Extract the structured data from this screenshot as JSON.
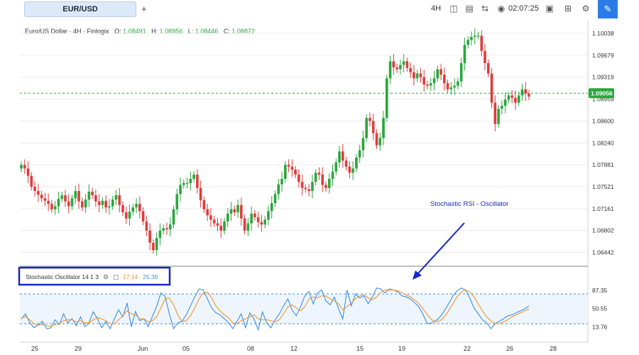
{
  "toolbar": {
    "symbol": "EUR/USD",
    "add_label": "+",
    "timeframe": "4H",
    "time": "02:07:25"
  },
  "legend": {
    "title": "Euro/US Dollar · 4H · Finlogix",
    "o_label": "O:",
    "o": "1.08491",
    "h_label": "H:",
    "h": "1.08956",
    "l_label": "L:",
    "l": "1.08446",
    "c_label": "C:",
    "c": "1.08872"
  },
  "osc": {
    "label": "Stochastic Oscillator 14 1 3",
    "k": "17.14",
    "d": "25.39"
  },
  "annotation": "Stochastic RSI - Oscillator",
  "colors": {
    "up": "#2aa63c",
    "down": "#e03b3b",
    "k_line": "#3d8fe0",
    "d_line": "#f0952d",
    "annot": "#1727c4",
    "price_line": "#2aa63c"
  },
  "chart_data": [
    {
      "type": "candlestick",
      "title": "Euro/US Dollar · 4H · Finlogix",
      "x_ticks": [
        "25",
        "29",
        "Jun",
        "05",
        "08",
        "12",
        "15",
        "19",
        "22",
        "26",
        "28"
      ],
      "y_ticks": [
        "1.10038",
        "1.09679",
        "1.09319",
        "1.08959",
        "1.08600",
        "1.08240",
        "1.07881",
        "1.07521",
        "1.07161",
        "1.06802",
        "1.06442"
      ],
      "current_price": "1.09056",
      "ylim": [
        1.0625,
        1.1026
      ],
      "close_series": [
        1.0788,
        1.0782,
        1.077,
        1.0752,
        1.0745,
        1.0739,
        1.0733,
        1.0729,
        1.0724,
        1.0715,
        1.072,
        1.0732,
        1.0738,
        1.0728,
        1.072,
        1.0733,
        1.0745,
        1.0728,
        1.0718,
        1.0731,
        1.0744,
        1.0738,
        1.0728,
        1.0722,
        1.0729,
        1.0718,
        1.072,
        1.0731,
        1.0738,
        1.0722,
        1.071,
        1.07,
        1.0711,
        1.0718,
        1.0724,
        1.0712,
        1.0695,
        1.068,
        1.066,
        1.0648,
        1.0668,
        1.068,
        1.0684,
        1.0682,
        1.069,
        1.0715,
        1.074,
        1.0755,
        1.0758,
        1.0758,
        1.0765,
        1.0772,
        1.075,
        1.073,
        1.0715,
        1.0705,
        1.0698,
        1.0692,
        1.0688,
        1.068,
        1.0695,
        1.0708,
        1.0715,
        1.071,
        1.0722,
        1.07,
        1.068,
        1.0692,
        1.0708,
        1.0702,
        1.0694,
        1.069,
        1.0698,
        1.0712,
        1.0725,
        1.074,
        1.0756,
        1.0765,
        1.0788,
        1.0785,
        1.078,
        1.0772,
        1.076,
        1.075,
        1.0748,
        1.0745,
        1.076,
        1.0775,
        1.0772,
        1.0755,
        1.075,
        1.0765,
        1.0777,
        1.0792,
        1.081,
        1.0795,
        1.0785,
        1.0775,
        1.0782,
        1.08,
        1.0812,
        1.0832,
        1.0865,
        1.086,
        1.084,
        1.082,
        1.0832,
        1.0865,
        1.093,
        1.0958,
        1.0948,
        1.0945,
        1.0952,
        1.0958,
        1.0947,
        1.094,
        1.093,
        1.0938,
        1.0932,
        1.092,
        1.0918,
        1.0922,
        1.093,
        1.0945,
        1.0936,
        1.0922,
        1.0912,
        1.0915,
        1.0918,
        1.0925,
        1.0955,
        1.0985,
        1.0993,
        1.0998,
        1.1,
        1.1,
        1.0975,
        1.0955,
        1.0938,
        1.089,
        1.0855,
        1.088,
        1.0885,
        1.0895,
        1.0902,
        1.0898,
        1.089,
        1.0902,
        1.0912,
        1.0905,
        1.09
      ]
    },
    {
      "type": "line",
      "title": "Stochastic Oscillator 14 1 3",
      "y_ticks": [
        "87.35",
        "50.55",
        "13.76"
      ],
      "levels": [
        80,
        20
      ],
      "series": [
        {
          "name": "%K",
          "values": [
            30,
            40,
            22,
            12,
            18,
            25,
            10,
            12,
            28,
            18,
            40,
            22,
            30,
            16,
            34,
            14,
            22,
            44,
            30,
            12,
            25,
            10,
            30,
            48,
            34,
            62,
            14,
            45,
            26,
            30,
            14,
            35,
            55,
            82,
            75,
            40,
            10,
            22,
            25,
            38,
            56,
            74,
            90,
            88,
            70,
            52,
            42,
            38,
            30,
            22,
            10,
            25,
            40,
            12,
            42,
            30,
            8,
            44,
            22,
            12,
            28,
            40,
            56,
            70,
            48,
            36,
            54,
            76,
            85,
            60,
            82,
            88,
            66,
            58,
            74,
            50,
            30,
            88,
            56,
            80,
            72,
            76,
            60,
            74,
            92,
            90,
            82,
            90,
            88,
            84,
            76,
            74,
            70,
            62,
            54,
            38,
            20,
            22,
            26,
            34,
            46,
            60,
            76,
            86,
            92,
            88,
            72,
            52,
            40,
            28,
            22,
            10,
            20,
            25,
            30,
            36,
            38,
            42,
            46,
            50,
            56
          ]
        },
        {
          "name": "%D",
          "values": [
            32,
            34,
            28,
            20,
            17,
            18,
            16,
            15,
            18,
            20,
            26,
            28,
            28,
            24,
            26,
            22,
            22,
            28,
            32,
            30,
            26,
            20,
            20,
            28,
            36,
            46,
            40,
            38,
            30,
            30,
            24,
            26,
            34,
            52,
            70,
            72,
            58,
            38,
            24,
            26,
            36,
            52,
            70,
            82,
            84,
            72,
            56,
            46,
            38,
            32,
            22,
            20,
            26,
            30,
            34,
            38,
            30,
            28,
            28,
            26,
            24,
            28,
            40,
            54,
            58,
            52,
            46,
            54,
            70,
            74,
            72,
            76,
            76,
            70,
            66,
            60,
            48,
            54,
            62,
            70,
            76,
            78,
            72,
            68,
            74,
            84,
            88,
            88,
            88,
            86,
            82,
            78,
            74,
            68,
            60,
            50,
            38,
            28,
            24,
            26,
            34,
            46,
            60,
            74,
            84,
            88,
            84,
            74,
            60,
            46,
            34,
            26,
            20,
            20,
            24,
            28,
            34,
            38,
            42,
            46,
            50
          ]
        }
      ]
    }
  ]
}
